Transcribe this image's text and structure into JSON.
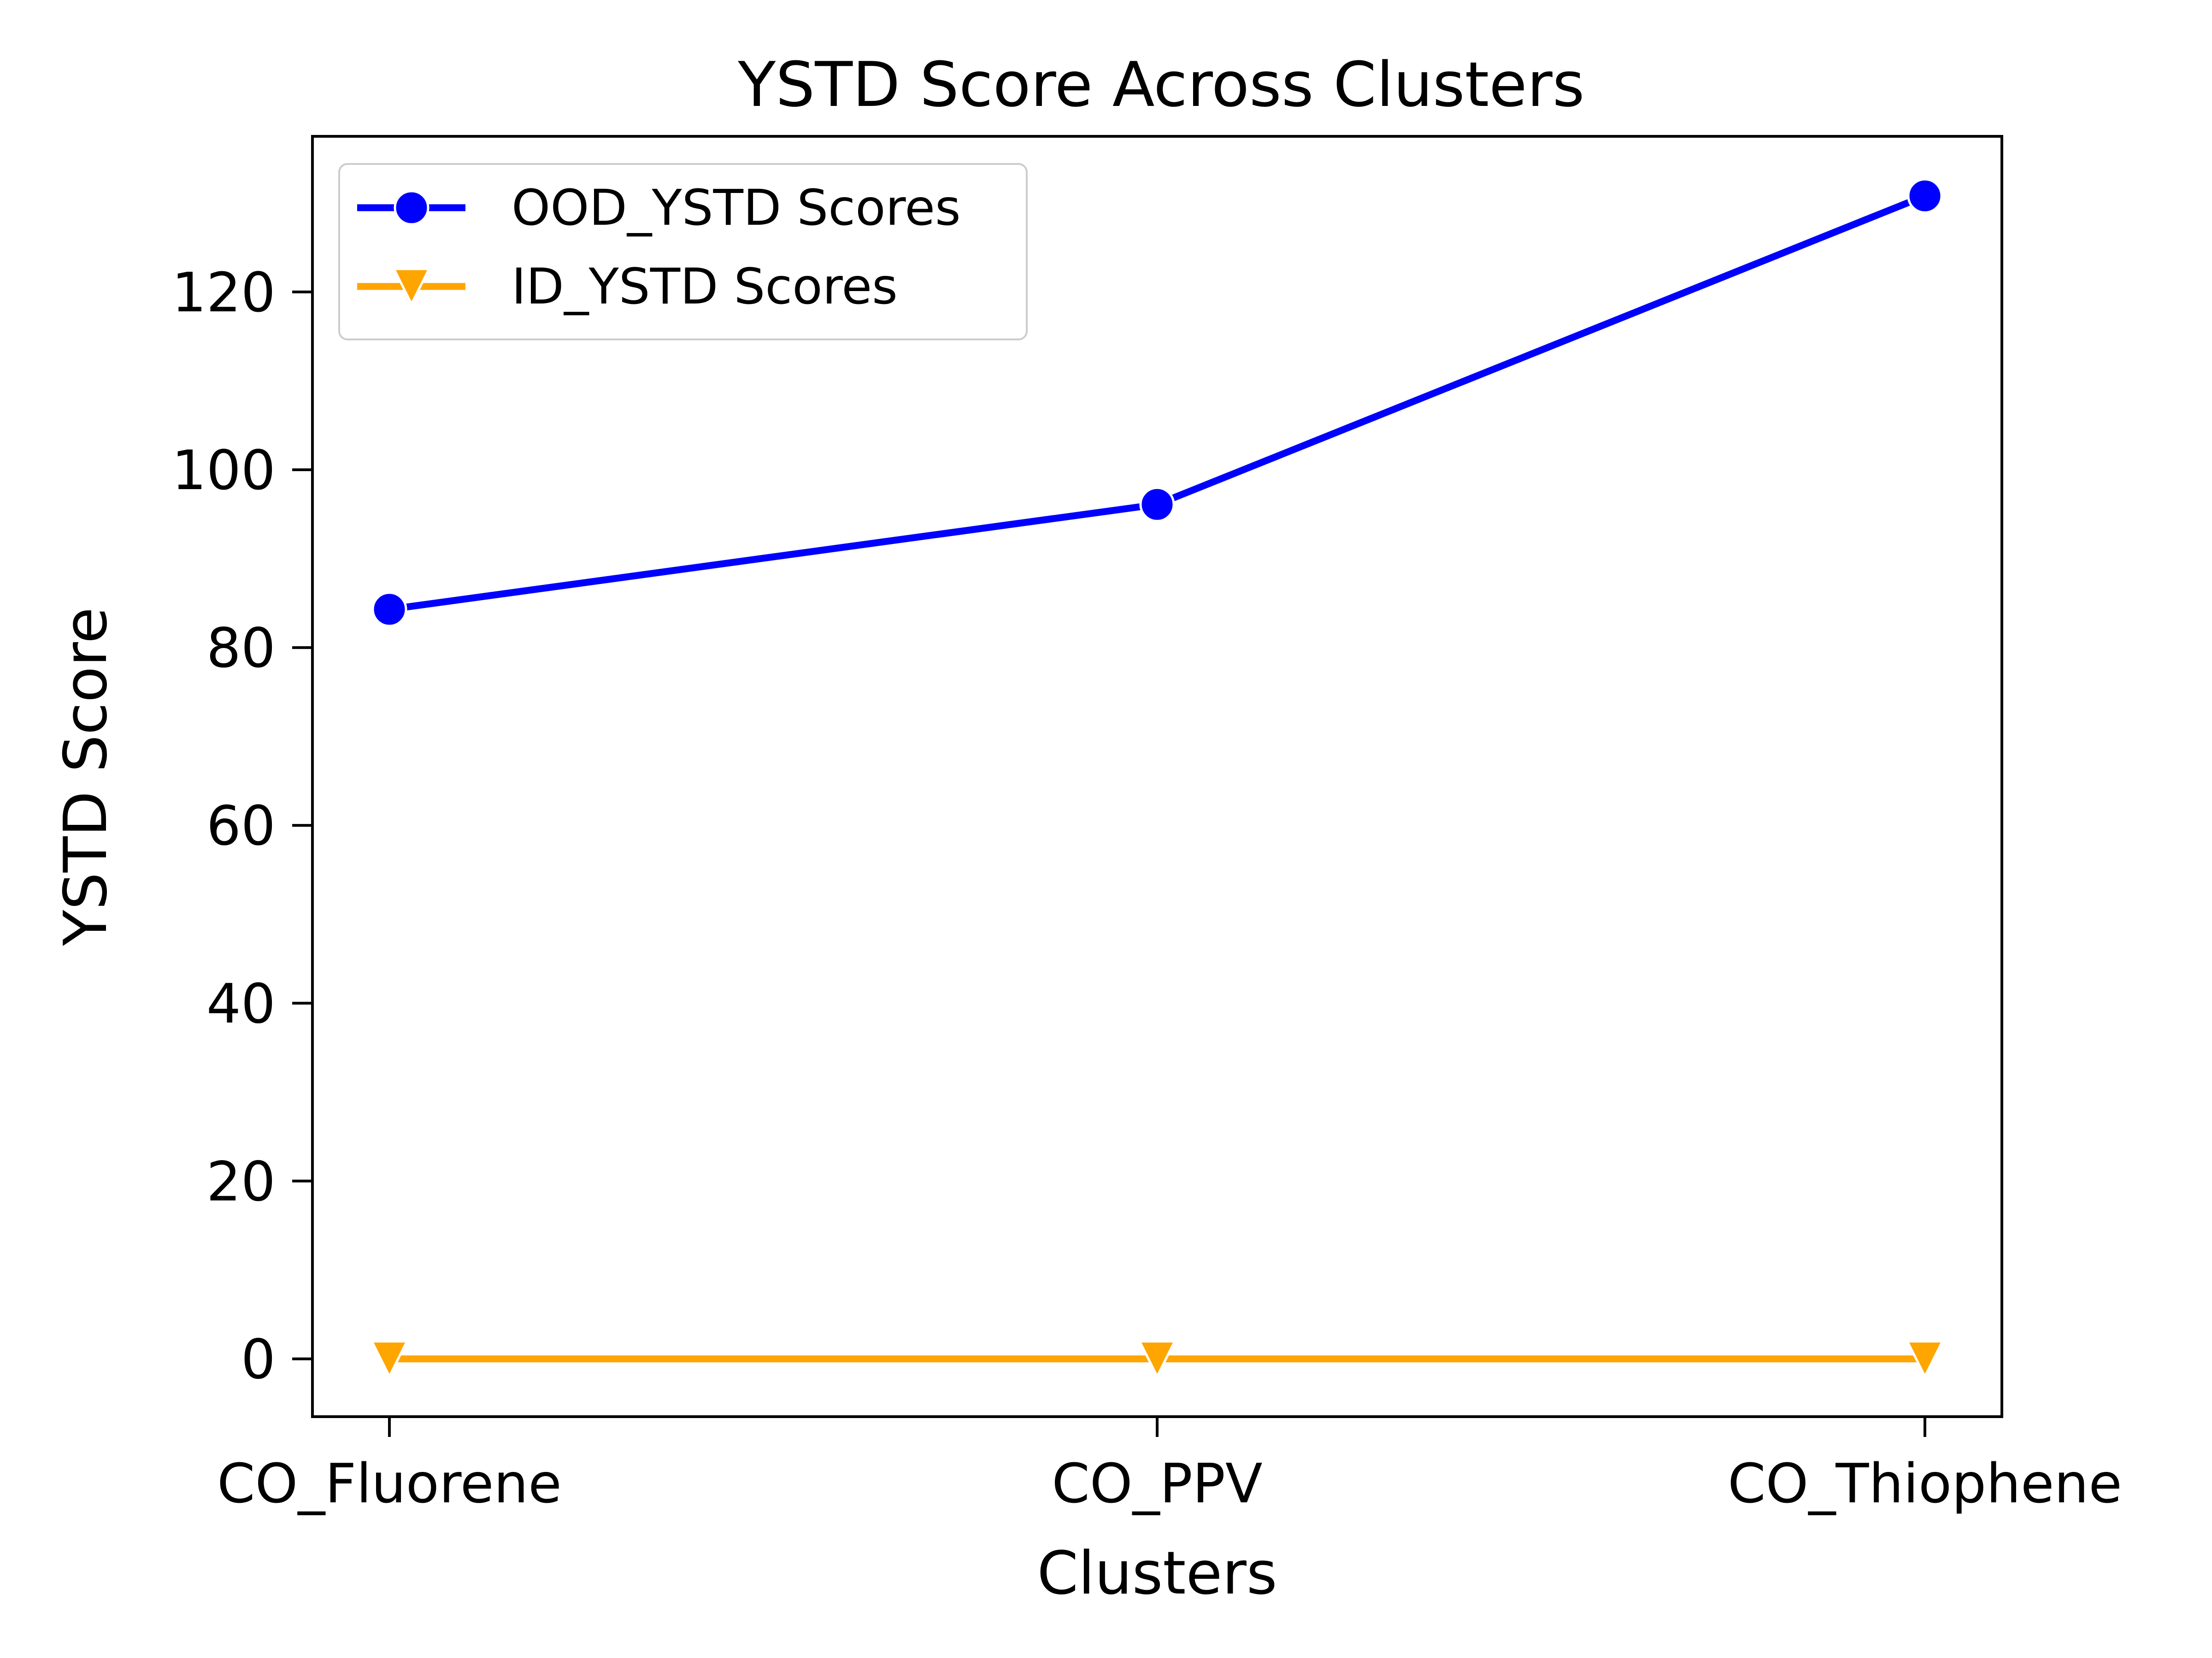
{
  "chart_data": {
    "type": "line",
    "title": "YSTD Score Across Clusters",
    "xlabel": "Clusters",
    "ylabel": "YSTD Score",
    "categories": [
      "CO_Fluorene",
      "CO_PPV",
      "CO_Thiophene"
    ],
    "ylim": [
      -6.5,
      137.5
    ],
    "yticks": [
      0,
      20,
      40,
      60,
      80,
      100,
      120
    ],
    "grid": false,
    "legend": "top-left",
    "series": [
      {
        "name": "OOD_YSTD Scores",
        "values": [
          84.3,
          96.1,
          130.8
        ],
        "color": "#0000ff",
        "marker": "circle"
      },
      {
        "name": "ID_YSTD Scores",
        "values": [
          0.0,
          0.0,
          0.0
        ],
        "color": "#ffa500",
        "marker": "triangle-down"
      }
    ]
  }
}
